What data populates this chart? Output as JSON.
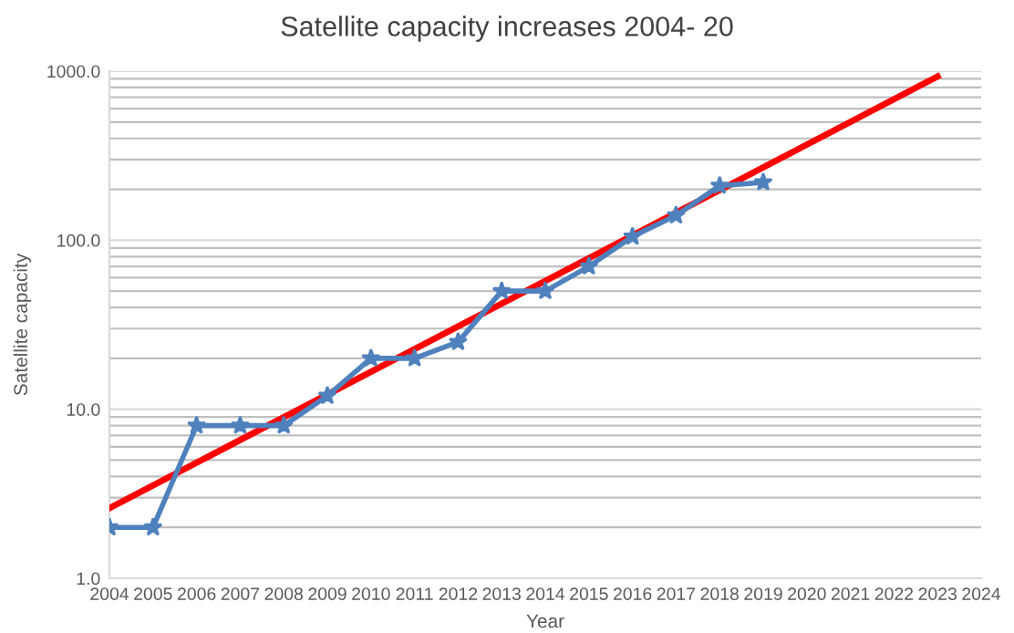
{
  "chart_data": {
    "type": "line",
    "title": "Satellite capacity increases 2004- 20",
    "xlabel": "Year",
    "ylabel": "Satellite capacity",
    "series": [
      {
        "color": "#4f81bd",
        "marker": "star",
        "x": [
          2004,
          2005,
          2006,
          2007,
          2008,
          2009,
          2010,
          2011,
          2012,
          2013,
          2014,
          2015,
          2016,
          2017,
          2018,
          2019
        ],
        "values": [
          2,
          2,
          8,
          8,
          8,
          12,
          20,
          20,
          25,
          50,
          50,
          70,
          105,
          140,
          210,
          220
        ]
      },
      {
        "color": "#ff0000",
        "marker": "none",
        "x": [
          2004,
          2023
        ],
        "values": [
          2.6,
          930
        ]
      }
    ],
    "log": "y",
    "xlim": [
      2004,
      2024
    ],
    "xticks": [
      2004,
      2005,
      2006,
      2007,
      2008,
      2009,
      2010,
      2011,
      2012,
      2013,
      2014,
      2015,
      2016,
      2017,
      2018,
      2019,
      2020,
      2021,
      2022,
      2023,
      2024
    ],
    "ylim": [
      1,
      1000
    ],
    "yticks": [
      {
        "value": 1,
        "label": "1.0"
      },
      {
        "value": 10,
        "label": "10.0"
      },
      {
        "value": 100,
        "label": "100.0"
      },
      {
        "value": 1000,
        "label": "1000.0"
      }
    ],
    "grid": "y",
    "legend": false
  }
}
